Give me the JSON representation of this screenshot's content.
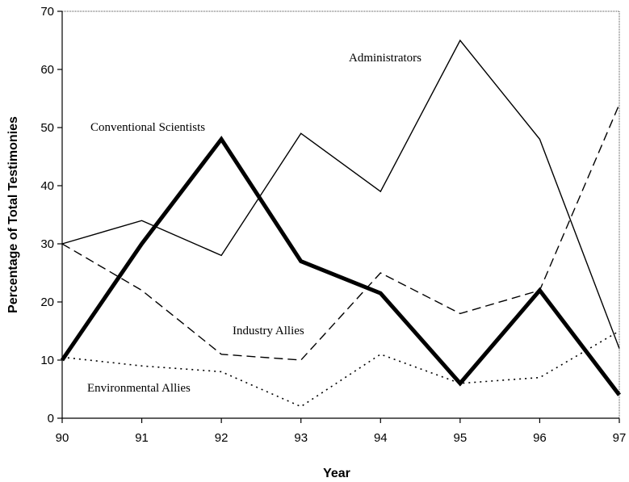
{
  "chart_data": {
    "type": "line",
    "title": "",
    "xlabel": "Year",
    "ylabel": "Percentage of Total Testimonies",
    "x": [
      90,
      91,
      92,
      93,
      94,
      95,
      96,
      97
    ],
    "x_tick_labels": [
      "90",
      "91",
      "92",
      "93",
      "94",
      "95",
      "96",
      "97"
    ],
    "ylim": [
      0,
      70
    ],
    "y_ticks": [
      0,
      10,
      20,
      30,
      40,
      50,
      60,
      70
    ],
    "y_tick_labels": [
      "0",
      "10",
      "20",
      "30",
      "40",
      "50",
      "60",
      "70"
    ],
    "grid": false,
    "legend": "none (series labelled directly on plot)",
    "series": [
      {
        "name": "Administrators",
        "style": "thin-solid",
        "color": "#000000",
        "values": [
          30,
          34,
          28,
          49,
          39,
          65,
          48,
          12
        ]
      },
      {
        "name": "Conventional Scientists",
        "style": "thick-solid",
        "color": "#000000",
        "values": [
          10,
          30,
          48,
          27,
          21.5,
          6,
          22,
          4
        ]
      },
      {
        "name": "Industry Allies",
        "style": "dashed",
        "color": "#000000",
        "values": [
          30,
          22,
          11,
          10,
          25,
          18,
          22,
          54
        ]
      },
      {
        "name": "Environmental Allies",
        "style": "dotted",
        "color": "#000000",
        "values": [
          10.5,
          9,
          8,
          2,
          11,
          6,
          7,
          15
        ]
      }
    ]
  }
}
